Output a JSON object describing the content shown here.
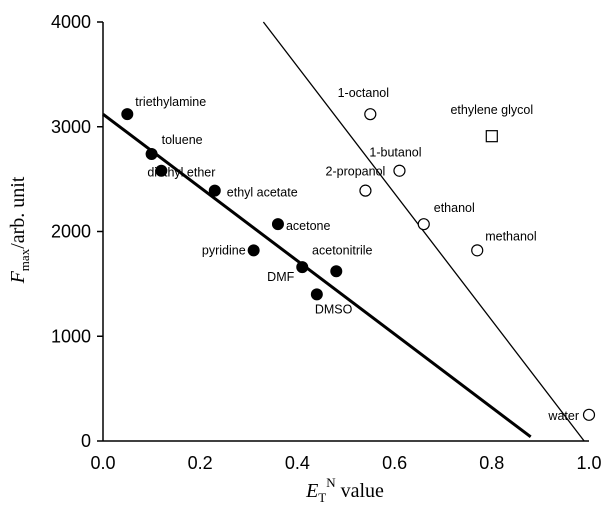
{
  "chart_data": {
    "type": "scatter",
    "title": "",
    "xlabel": {
      "main": "E",
      "sub": "T",
      "sup": "N",
      "rest": " value"
    },
    "ylabel": {
      "main": "F",
      "sub": "max",
      "rest": "/arb. unit"
    },
    "xlim": [
      0.0,
      1.0
    ],
    "ylim": [
      0,
      4000
    ],
    "x_ticks": [
      "0.0",
      "0.2",
      "0.4",
      "0.6",
      "0.8",
      "1.0"
    ],
    "y_ticks": [
      "0",
      "1000",
      "2000",
      "3000",
      "4000"
    ],
    "grid": false,
    "legend": "none",
    "series": [
      {
        "marker": "filled-circle",
        "points": [
          {
            "label": "triethylamine",
            "x": 0.05,
            "y": 3120
          },
          {
            "label": "toluene",
            "x": 0.1,
            "y": 2740
          },
          {
            "label": "diethyl ether",
            "x": 0.12,
            "y": 2580
          },
          {
            "label": "ethyl acetate",
            "x": 0.23,
            "y": 2390
          },
          {
            "label": "acetone",
            "x": 0.36,
            "y": 2070
          },
          {
            "label": "pyridine",
            "x": 0.31,
            "y": 1820
          },
          {
            "label": "DMF",
            "x": 0.41,
            "y": 1660
          },
          {
            "label": "acetonitrile",
            "x": 0.48,
            "y": 1620
          },
          {
            "label": "DMSO",
            "x": 0.44,
            "y": 1400
          }
        ],
        "fit": {
          "x": [
            0.0,
            0.88
          ],
          "y": [
            3120,
            40
          ]
        }
      },
      {
        "marker": "open-circle",
        "points": [
          {
            "label": "1-octanol",
            "x": 0.55,
            "y": 3120
          },
          {
            "label": "1-butanol",
            "x": 0.61,
            "y": 2580
          },
          {
            "label": "2-propanol",
            "x": 0.54,
            "y": 2390
          },
          {
            "label": "ethanol",
            "x": 0.66,
            "y": 2070
          },
          {
            "label": "methanol",
            "x": 0.77,
            "y": 1820
          },
          {
            "label": "water",
            "x": 1.0,
            "y": 250
          }
        ],
        "fit": {
          "x": [
            0.33,
            0.99
          ],
          "y": [
            4000,
            0
          ]
        }
      },
      {
        "marker": "open-square",
        "points": [
          {
            "label": "ethylene glycol",
            "x": 0.8,
            "y": 2910
          }
        ]
      }
    ]
  }
}
